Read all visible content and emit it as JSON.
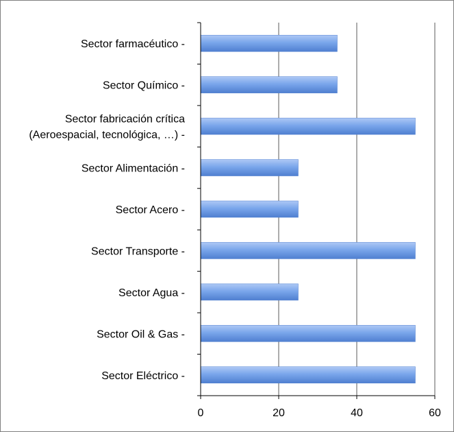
{
  "chart_data": {
    "type": "bar",
    "orientation": "horizontal",
    "categories": [
      [
        "Sector Eléctrico -"
      ],
      [
        "Sector Oil & Gas -"
      ],
      [
        "Sector Agua -"
      ],
      [
        "Sector Transporte -"
      ],
      [
        "Sector Acero -"
      ],
      [
        "Sector Alimentación -"
      ],
      [
        "Sector fabricación crítica",
        "(Aeroespacial, tecnológica, …) -"
      ],
      [
        "Sector Químico -"
      ],
      [
        "Sector farmacéutico -"
      ]
    ],
    "values": [
      55,
      55,
      25,
      55,
      25,
      25,
      55,
      35,
      35
    ],
    "xlim": [
      0,
      60
    ],
    "xticks": [
      0,
      20,
      40,
      60
    ],
    "grid": true,
    "legend": "none",
    "title": "",
    "xlabel": "",
    "ylabel": "",
    "colors": {
      "bar_light": "#aec8f5",
      "bar_mid": "#7aa6eb",
      "bar_dark": "#4f7fd0",
      "gridline": "#595959",
      "axis": "#000000",
      "border": "#7f7f7f"
    }
  }
}
